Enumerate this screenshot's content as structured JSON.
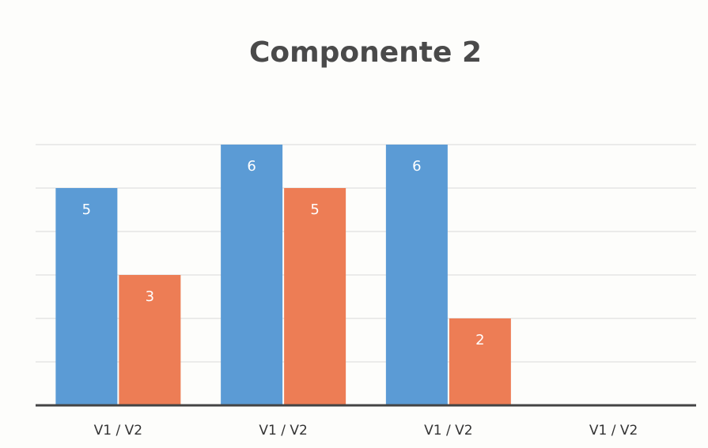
{
  "chart_data": {
    "type": "bar",
    "title": "Componente 2",
    "categories": [
      "V1 / V2",
      "V1 / V2",
      "V1 / V2",
      "V1 / V2"
    ],
    "series": [
      {
        "color": "#5b9bd5",
        "values": [
          5,
          6,
          6,
          null
        ]
      },
      {
        "color": "#ed7d55",
        "values": [
          3,
          5,
          2,
          null
        ]
      }
    ],
    "ylim": [
      0,
      6
    ],
    "yticks": [
      0,
      1,
      2,
      3,
      4,
      5,
      6
    ],
    "grid": true
  }
}
